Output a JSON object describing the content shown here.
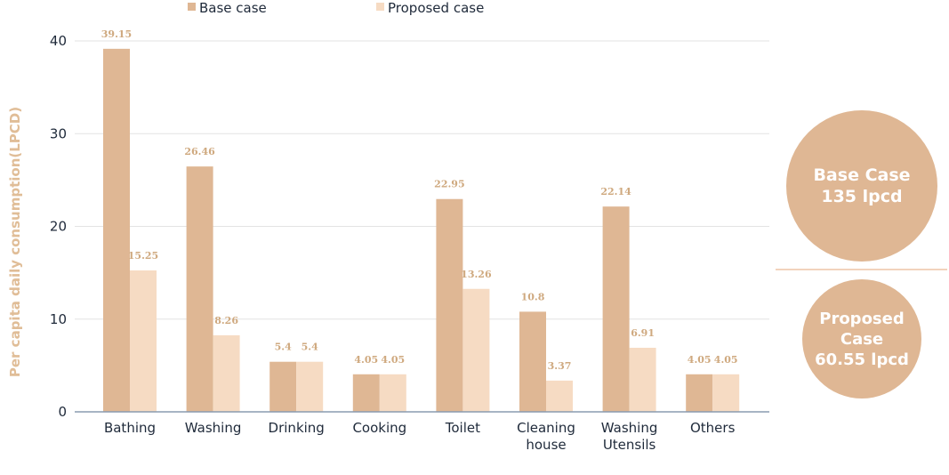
{
  "chart_data": {
    "type": "bar",
    "title": "",
    "xlabel": "",
    "ylabel": "Per capita daily consumption(LPCD)",
    "ylim": [
      0,
      40
    ],
    "yticks": [
      "0",
      "10",
      "20",
      "30",
      "40"
    ],
    "grid": true,
    "legend_position": "top",
    "categories": [
      [
        "Bathing"
      ],
      [
        "Washing"
      ],
      [
        "Drinking"
      ],
      [
        "Cooking"
      ],
      [
        "Toilet"
      ],
      [
        "Cleaning",
        "house"
      ],
      [
        "Washing",
        "Utensils"
      ],
      [
        "Others"
      ]
    ],
    "series": [
      {
        "name": "Base case",
        "color": "#dfb794",
        "values": [
          39.15,
          26.46,
          5.4,
          4.05,
          22.95,
          10.8,
          22.14,
          4.05
        ],
        "labels": [
          "39.15",
          "26.46",
          "5.4",
          "4.05",
          "22.95",
          "10.8",
          "22.14",
          "4.05"
        ]
      },
      {
        "name": "Proposed case",
        "color": "#f6dbc3",
        "values": [
          15.25,
          8.26,
          5.4,
          4.05,
          13.26,
          3.37,
          6.91,
          4.05
        ],
        "labels": [
          "15.25",
          "8.26",
          "5.4",
          "4.05",
          "13.26",
          "3.37",
          "6.91",
          "4.05"
        ]
      }
    ]
  },
  "summary": {
    "base": {
      "line1": "Base Case",
      "line2": "135 lpcd"
    },
    "proposed": {
      "line1": "Proposed",
      "line2": "Case",
      "line3": "60.55 lpcd"
    }
  }
}
